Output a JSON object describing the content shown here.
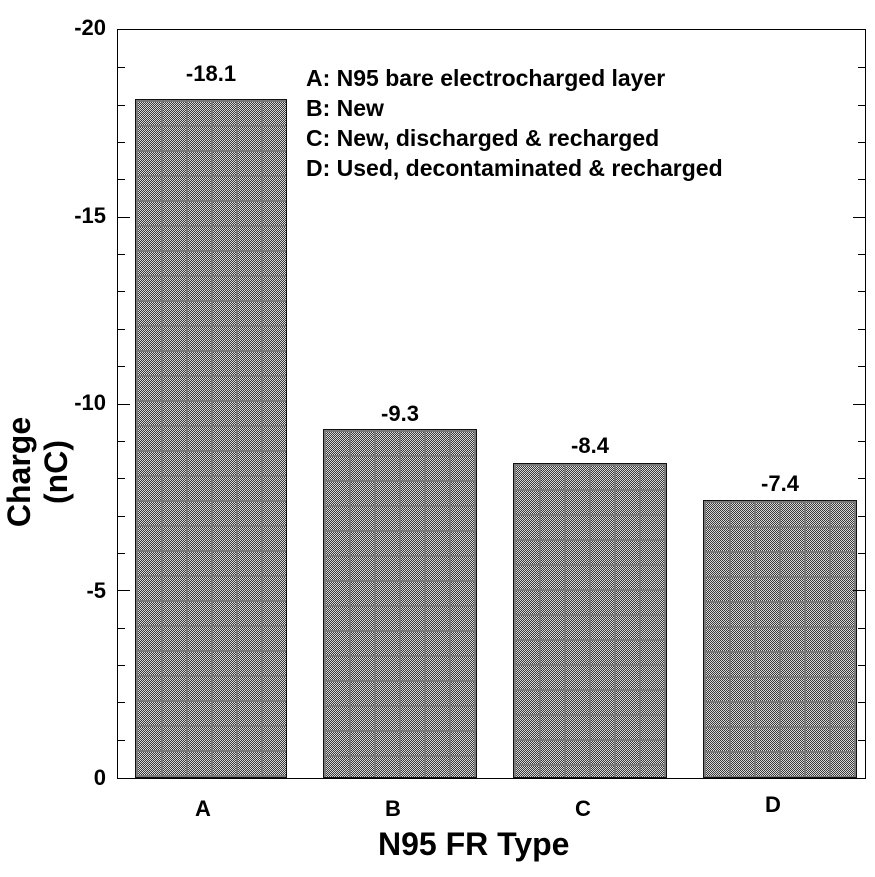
{
  "chart_data": {
    "type": "bar",
    "title": "",
    "xlabel": "N95 FR Type",
    "ylabel": "Charge (nC)",
    "categories": [
      "A",
      "B",
      "C",
      "D"
    ],
    "values": [
      -18.1,
      -9.3,
      -8.4,
      -7.4
    ],
    "data_labels": [
      "-18.1",
      "-9.3",
      "-8.4",
      "-7.4"
    ],
    "ylim": [
      0,
      -20
    ],
    "yticks": [
      "-20",
      "-15",
      "-10",
      "-5",
      "0"
    ],
    "y_minor_tick_step": 1,
    "grid": false,
    "inverted_y_axis": true,
    "legend_position": "top-right inside plot",
    "legend": [
      "A: N95 bare electrocharged layer",
      "B: New",
      "C: New, discharged & recharged",
      "D: Used, decontaminated & recharged"
    ],
    "bar_fill": "gray crosshatch pattern",
    "colors": {
      "bar": "#8a8a8a",
      "axis": "#000000",
      "background": "#ffffff"
    }
  }
}
